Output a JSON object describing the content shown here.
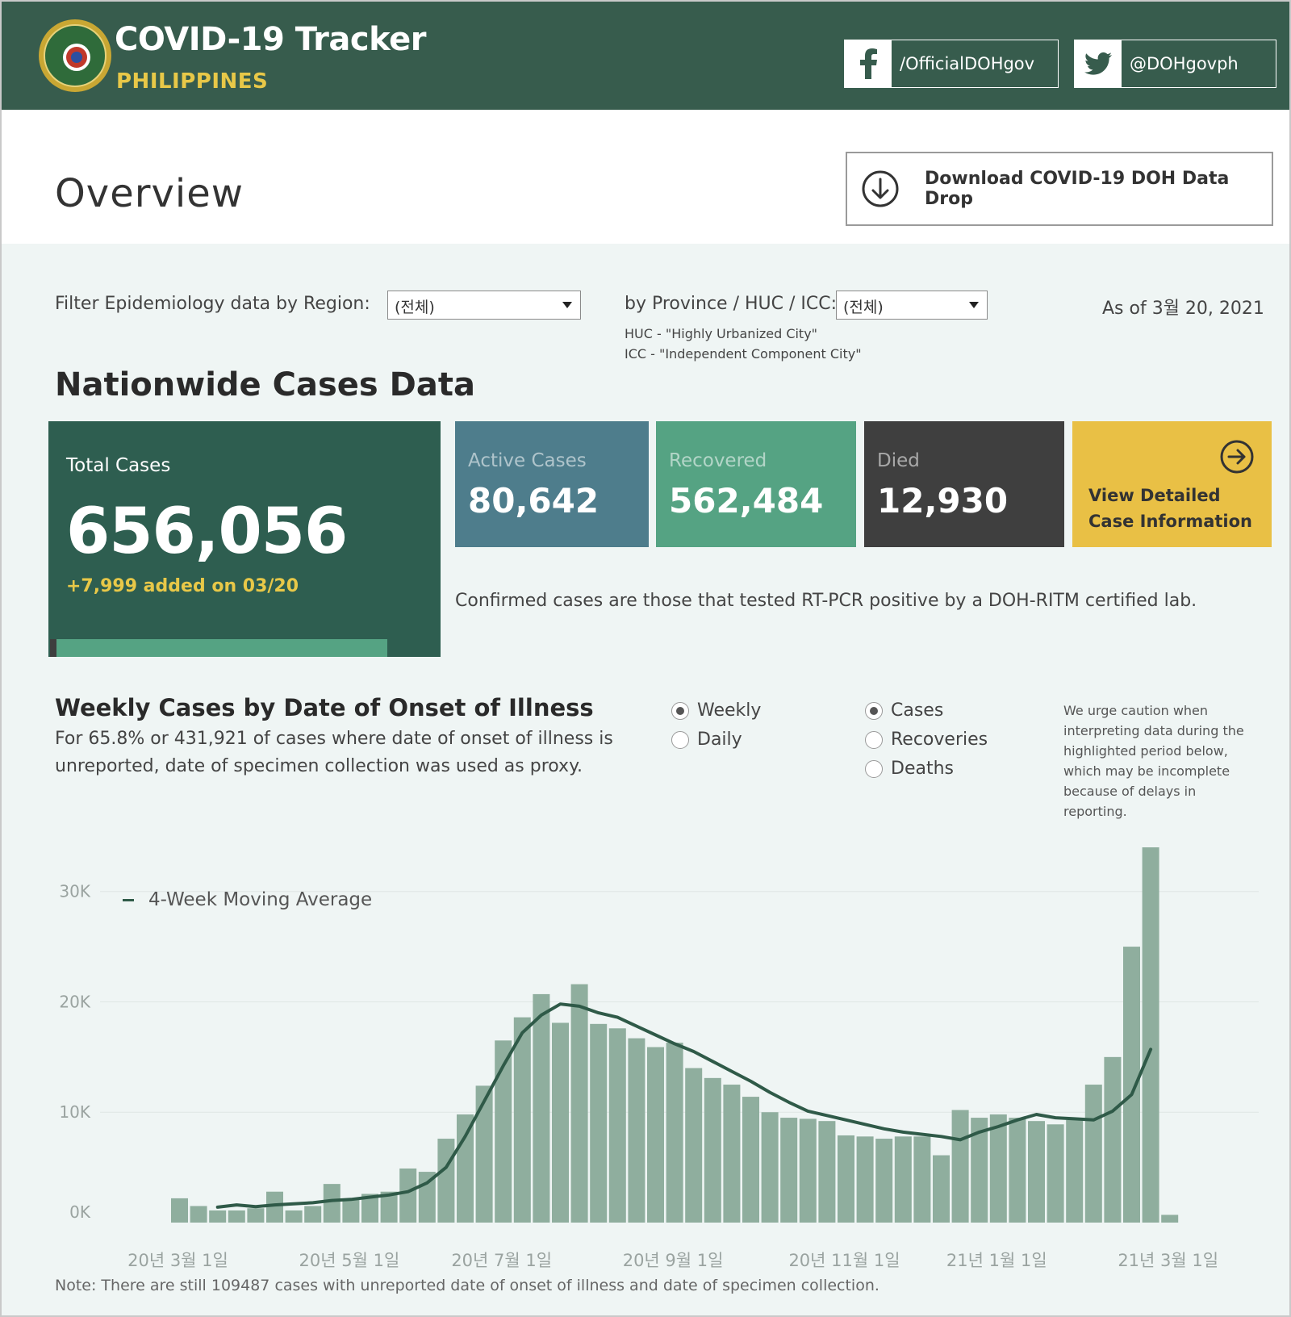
{
  "header": {
    "title": "COVID-19 Tracker",
    "subtitle": "PHILIPPINES",
    "facebook_handle": "/OfficialDOHgov",
    "twitter_handle": "@DOHgovph"
  },
  "overview": {
    "title": "Overview",
    "download_label": "Download COVID-19 DOH Data Drop"
  },
  "filters": {
    "region_label": "Filter Epidemiology data by Region:",
    "region_value": "(전체)",
    "province_label": "by Province / HUC / ICC:",
    "province_value": "(전체)",
    "huc_note": "HUC - \"Highly Urbanized City\"",
    "icc_note": "ICC - \"Independent Component City\"",
    "as_of": "As of 3월 20, 2021"
  },
  "nationwide": {
    "title": "Nationwide Cases Data",
    "total_label": "Total Cases",
    "total_value": "656,056",
    "added": "+7,999 added on 03/20",
    "active_label": "Active Cases",
    "active_value": "80,642",
    "recovered_label": "Recovered",
    "recovered_value": "562,484",
    "died_label": "Died",
    "died_value": "12,930",
    "view_line1": "View Detailed",
    "view_line2": "Case Information",
    "confirmed_note": "Confirmed cases are those that tested RT-PCR positive by a DOH-RITM certified lab.",
    "colors": {
      "total": "#2e5e50",
      "active": "#4e7d8c",
      "recovered": "#55a383",
      "died": "#3f3f3f",
      "view": "#e9c045"
    }
  },
  "weekly": {
    "title": "Weekly Cases by Date of Onset of Illness",
    "sub_line1": "For 65.8% or 431,921 of cases where date of onset of illness is",
    "sub_line2": "unreported, date of specimen collection was used as proxy.",
    "period_options": [
      {
        "label": "Weekly",
        "selected": true
      },
      {
        "label": "Daily",
        "selected": false
      }
    ],
    "metric_options": [
      {
        "label": "Cases",
        "selected": true
      },
      {
        "label": "Recoveries",
        "selected": false
      },
      {
        "label": "Deaths",
        "selected": false
      }
    ],
    "caution": [
      "We urge caution when",
      "interpreting data during the",
      "highlighted period below,",
      "which may be incomplete",
      "because of delays in",
      "reporting."
    ],
    "legend": "4-Week Moving Average"
  },
  "chart_data": {
    "type": "bar",
    "title": "Weekly Cases by Date of Onset of Illness",
    "y_ticks": [
      "0K",
      "10K",
      "20K",
      "30K"
    ],
    "ylim": [
      0,
      34000
    ],
    "x_ticks": [
      {
        "label": "20년 3월 1일",
        "index": 0
      },
      {
        "label": "20년 5월 1일",
        "index": 9
      },
      {
        "label": "20년 7월 1일",
        "index": 17
      },
      {
        "label": "20년 9월 1일",
        "index": 26
      },
      {
        "label": "20년 11월 1일",
        "index": 35
      },
      {
        "label": "21년 1월 1일",
        "index": 43
      },
      {
        "label": "21년 3월 1일",
        "index": 52
      }
    ],
    "bar_color": "#8fae9e",
    "line_color": "#2f5a48",
    "highlight_color": "#e1e6e5",
    "highlight_from_index": 54,
    "series": [
      {
        "name": "Cases",
        "values": [
          2200,
          1500,
          1100,
          1100,
          1300,
          2800,
          1100,
          1500,
          3500,
          2100,
          2600,
          2800,
          4900,
          4600,
          7600,
          9800,
          12400,
          16500,
          18600,
          20700,
          18100,
          21600,
          18000,
          17600,
          16700,
          15900,
          16300,
          14000,
          13100,
          12500,
          11400,
          10000,
          9500,
          9400,
          9200,
          7900,
          7800,
          7600,
          7800,
          7800,
          6100,
          10200,
          9500,
          9800,
          9500,
          9200,
          8900,
          9300,
          12500,
          15000,
          25000,
          34000,
          700
        ]
      },
      {
        "name": "4-Week Moving Average",
        "values": [
          null,
          null,
          1400,
          1600,
          1450,
          1600,
          1700,
          1800,
          2000,
          2100,
          2300,
          2500,
          2800,
          3600,
          5000,
          7800,
          11000,
          14200,
          17200,
          18800,
          19800,
          19600,
          19000,
          18600,
          17800,
          17000,
          16200,
          15500,
          14600,
          13700,
          12800,
          11800,
          10900,
          10100,
          9700,
          9300,
          8900,
          8500,
          8200,
          8000,
          7800,
          7500,
          8200,
          8700,
          9300,
          9800,
          9500,
          9400,
          9300,
          10100,
          11600,
          15700,
          null
        ]
      }
    ]
  },
  "footer": {
    "note": "Note: There are still 109487 cases with unreported date of onset of illness and date of specimen collection."
  }
}
